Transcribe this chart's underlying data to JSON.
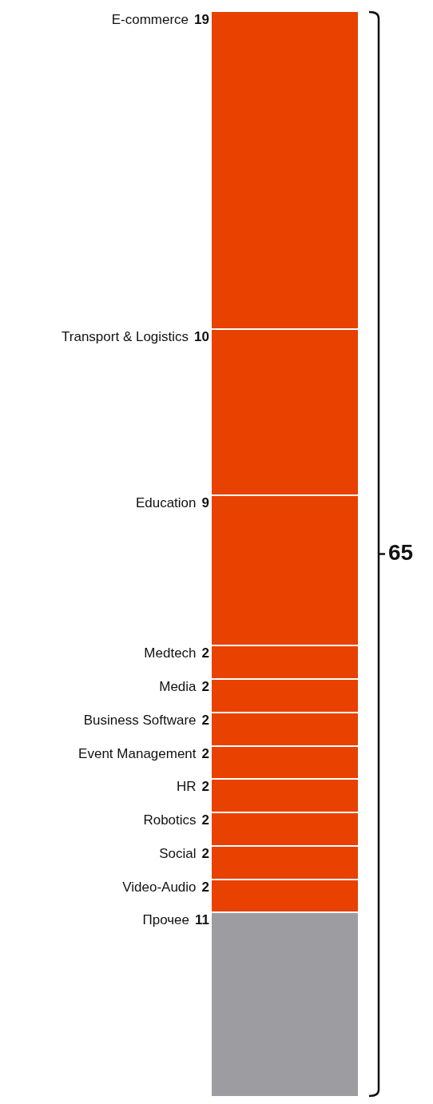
{
  "chart_data": {
    "type": "bar",
    "stacked": true,
    "categories": [
      null
    ],
    "tick_labels": false,
    "data_labels": true,
    "totals": [
      "65"
    ],
    "series": [
      {
        "name": "Прочее",
        "color": "#9d9ca0",
        "values": [
          11
        ]
      },
      {
        "name": "Video-Audio",
        "color": "#e84100",
        "values": [
          2
        ]
      },
      {
        "name": "Social",
        "color": "#e84100",
        "values": [
          2
        ]
      },
      {
        "name": "Robotics",
        "color": "#e84100",
        "values": [
          2
        ]
      },
      {
        "name": "HR",
        "color": "#e84100",
        "values": [
          2
        ]
      },
      {
        "name": "Event Management",
        "color": "#e84100",
        "values": [
          2
        ]
      },
      {
        "name": "Business Software",
        "color": "#e84100",
        "values": [
          2
        ]
      },
      {
        "name": "Media",
        "color": "#e84100",
        "values": [
          2
        ]
      },
      {
        "name": "Medtech",
        "color": "#e84100",
        "values": [
          2
        ]
      },
      {
        "name": "Education",
        "color": "#e84100",
        "values": [
          9
        ]
      },
      {
        "name": "Transport & Logistics",
        "color": "#e84100",
        "values": [
          10
        ]
      },
      {
        "name": "E-commerce",
        "color": "#e84100",
        "values": [
          19
        ]
      }
    ]
  }
}
